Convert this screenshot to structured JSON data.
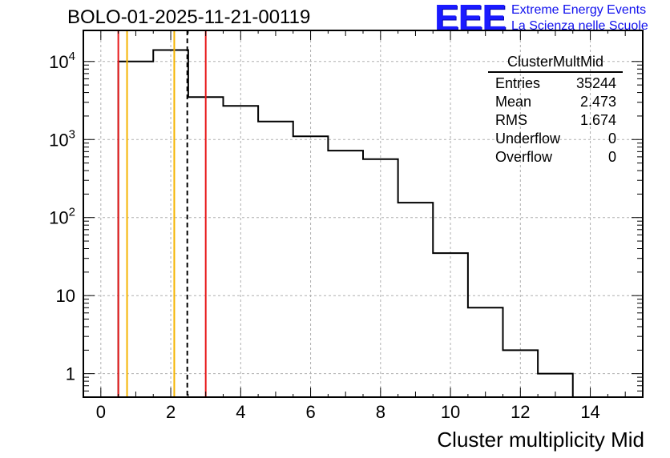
{
  "title": "BOLO-01-2025-11-21-00119",
  "logo": {
    "mark": "EEE",
    "line1": "Extreme Energy Events",
    "line2": "La Scienza nelle Scuole",
    "color": "#1a1aff"
  },
  "stats": {
    "name": "ClusterMultMid",
    "rows": [
      {
        "label": "Entries",
        "value": "35244"
      },
      {
        "label": "Mean",
        "value": "2.473"
      },
      {
        "label": "RMS",
        "value": "1.674"
      },
      {
        "label": "Underflow",
        "value": "0"
      },
      {
        "label": "Overflow",
        "value": "0"
      }
    ]
  },
  "chart_data": {
    "type": "histogram",
    "xlabel": "Cluster multiplicity Mid",
    "ylabel": "",
    "xlim": [
      -0.5,
      15.5
    ],
    "ylim": [
      0.5,
      25000
    ],
    "yscale": "log",
    "grid": true,
    "x_ticks": [
      0,
      2,
      4,
      6,
      8,
      10,
      12,
      14
    ],
    "y_ticks": [
      {
        "value": 1,
        "base": "1",
        "exp": ""
      },
      {
        "value": 10,
        "base": "10",
        "exp": ""
      },
      {
        "value": 100,
        "base": "10",
        "exp": "2"
      },
      {
        "value": 1000,
        "base": "10",
        "exp": "3"
      },
      {
        "value": 10000,
        "base": "10",
        "exp": "4"
      }
    ],
    "bins": [
      {
        "low": 0.5,
        "high": 1.5,
        "count": 10000
      },
      {
        "low": 1.5,
        "high": 2.5,
        "count": 14000
      },
      {
        "low": 2.5,
        "high": 3.5,
        "count": 3500
      },
      {
        "low": 3.5,
        "high": 4.5,
        "count": 2700
      },
      {
        "low": 4.5,
        "high": 5.5,
        "count": 1700
      },
      {
        "low": 5.5,
        "high": 6.5,
        "count": 1100
      },
      {
        "low": 6.5,
        "high": 7.5,
        "count": 720
      },
      {
        "low": 7.5,
        "high": 8.5,
        "count": 560
      },
      {
        "low": 8.5,
        "high": 9.5,
        "count": 155
      },
      {
        "low": 9.5,
        "high": 10.5,
        "count": 35
      },
      {
        "low": 10.5,
        "high": 11.5,
        "count": 7
      },
      {
        "low": 11.5,
        "high": 12.5,
        "count": 2
      },
      {
        "low": 12.5,
        "high": 13.5,
        "count": 1
      }
    ],
    "vlines": [
      {
        "x": 0.5,
        "color": "#e8191a",
        "style": "solid",
        "name": "red-line-low"
      },
      {
        "x": 0.75,
        "color": "#f5b400",
        "style": "solid",
        "name": "orange-line-low"
      },
      {
        "x": 2.1,
        "color": "#f5b400",
        "style": "solid",
        "name": "orange-line-high"
      },
      {
        "x": 2.473,
        "color": "#000000",
        "style": "dashed",
        "name": "mean-line"
      },
      {
        "x": 3.0,
        "color": "#e8191a",
        "style": "solid",
        "name": "red-line-high"
      }
    ]
  }
}
